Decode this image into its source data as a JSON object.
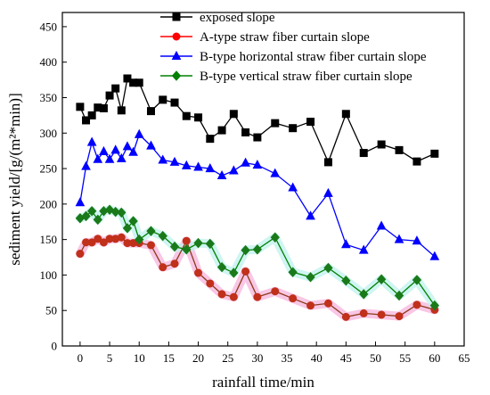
{
  "chart_data": {
    "type": "line",
    "xlabel": "rainfall time/min",
    "ylabel": "sediment yield/[g/(m²*min)]",
    "xlim": [
      -3,
      65
    ],
    "ylim": [
      0,
      470
    ],
    "x_ticks": [
      0,
      5,
      10,
      15,
      20,
      25,
      30,
      35,
      40,
      45,
      50,
      55,
      60,
      65
    ],
    "y_ticks": [
      0,
      50,
      100,
      150,
      200,
      250,
      300,
      350,
      400,
      450
    ],
    "x_tick_labels": [
      "0",
      "5",
      "10",
      "15",
      "20",
      "25",
      "30",
      "35",
      "40",
      "45",
      "50",
      "55",
      "60",
      "65"
    ],
    "y_tick_labels": [
      "0",
      "50",
      "100",
      "150",
      "200",
      "250",
      "300",
      "350",
      "400",
      "450"
    ],
    "legend_position": "top-right",
    "series": [
      {
        "name": "exposed slope",
        "color": "#000000",
        "marker": "square",
        "points": [
          [
            0,
            337
          ],
          [
            1,
            318
          ],
          [
            2,
            325
          ],
          [
            3,
            336
          ],
          [
            4,
            335
          ],
          [
            5,
            353
          ],
          [
            6,
            363
          ],
          [
            7,
            332
          ],
          [
            8,
            377
          ],
          [
            9,
            371
          ],
          [
            10,
            371
          ],
          [
            12,
            331
          ],
          [
            14,
            347
          ],
          [
            16,
            343
          ],
          [
            18,
            324
          ],
          [
            20,
            322
          ],
          [
            22,
            292
          ],
          [
            24,
            304
          ],
          [
            26,
            327
          ],
          [
            28,
            301
          ],
          [
            30,
            294
          ],
          [
            33,
            314
          ],
          [
            36,
            307
          ],
          [
            39,
            316
          ],
          [
            42,
            259
          ],
          [
            45,
            327
          ],
          [
            48,
            272
          ],
          [
            51,
            284
          ],
          [
            54,
            276
          ],
          [
            57,
            260
          ],
          [
            60,
            271
          ]
        ]
      },
      {
        "name": "A-type straw fiber curtain slope",
        "color": "#ff0000",
        "marker": "circle",
        "points": [
          [
            0,
            130
          ],
          [
            1,
            146
          ],
          [
            2,
            146
          ],
          [
            3,
            151
          ],
          [
            4,
            146
          ],
          [
            5,
            151
          ],
          [
            6,
            151
          ],
          [
            7,
            153
          ],
          [
            8,
            145
          ],
          [
            9,
            145
          ],
          [
            10,
            145
          ],
          [
            12,
            142
          ],
          [
            14,
            111
          ],
          [
            16,
            116
          ],
          [
            18,
            148
          ],
          [
            20,
            103
          ],
          [
            22,
            88
          ],
          [
            24,
            73
          ],
          [
            26,
            69
          ],
          [
            28,
            105
          ],
          [
            30,
            69
          ],
          [
            33,
            77
          ],
          [
            36,
            67
          ],
          [
            39,
            57
          ],
          [
            42,
            60
          ],
          [
            45,
            41
          ],
          [
            48,
            46
          ],
          [
            51,
            44
          ],
          [
            54,
            42
          ],
          [
            57,
            58
          ],
          [
            60,
            51
          ]
        ]
      },
      {
        "name": "B-type horizontal straw fiber curtain slope",
        "color": "#0000ff",
        "marker": "triangle",
        "points": [
          [
            0,
            202
          ],
          [
            1,
            253
          ],
          [
            2,
            287
          ],
          [
            3,
            263
          ],
          [
            4,
            274
          ],
          [
            5,
            263
          ],
          [
            6,
            276
          ],
          [
            7,
            264
          ],
          [
            8,
            281
          ],
          [
            9,
            273
          ],
          [
            10,
            298
          ],
          [
            12,
            282
          ],
          [
            14,
            262
          ],
          [
            16,
            259
          ],
          [
            18,
            254
          ],
          [
            20,
            252
          ],
          [
            22,
            250
          ],
          [
            24,
            240
          ],
          [
            26,
            247
          ],
          [
            28,
            258
          ],
          [
            30,
            255
          ],
          [
            33,
            243
          ],
          [
            36,
            223
          ],
          [
            39,
            183
          ],
          [
            42,
            215
          ],
          [
            45,
            143
          ],
          [
            48,
            135
          ],
          [
            51,
            169
          ],
          [
            54,
            150
          ],
          [
            57,
            148
          ],
          [
            60,
            126
          ]
        ]
      },
      {
        "name": "B-type vertical straw fiber curtain slope",
        "color": "#008000",
        "marker": "diamond",
        "points": [
          [
            0,
            180
          ],
          [
            1,
            183
          ],
          [
            2,
            190
          ],
          [
            3,
            178
          ],
          [
            4,
            190
          ],
          [
            5,
            192
          ],
          [
            6,
            189
          ],
          [
            7,
            188
          ],
          [
            8,
            166
          ],
          [
            9,
            176
          ],
          [
            10,
            150
          ],
          [
            12,
            162
          ],
          [
            14,
            155
          ],
          [
            16,
            140
          ],
          [
            18,
            136
          ],
          [
            20,
            145
          ],
          [
            22,
            144
          ],
          [
            24,
            111
          ],
          [
            26,
            103
          ],
          [
            28,
            135
          ],
          [
            30,
            136
          ],
          [
            33,
            153
          ],
          [
            36,
            104
          ],
          [
            39,
            97
          ],
          [
            42,
            110
          ],
          [
            45,
            92
          ],
          [
            48,
            73
          ],
          [
            51,
            94
          ],
          [
            54,
            71
          ],
          [
            57,
            93
          ],
          [
            60,
            57
          ]
        ]
      }
    ]
  }
}
